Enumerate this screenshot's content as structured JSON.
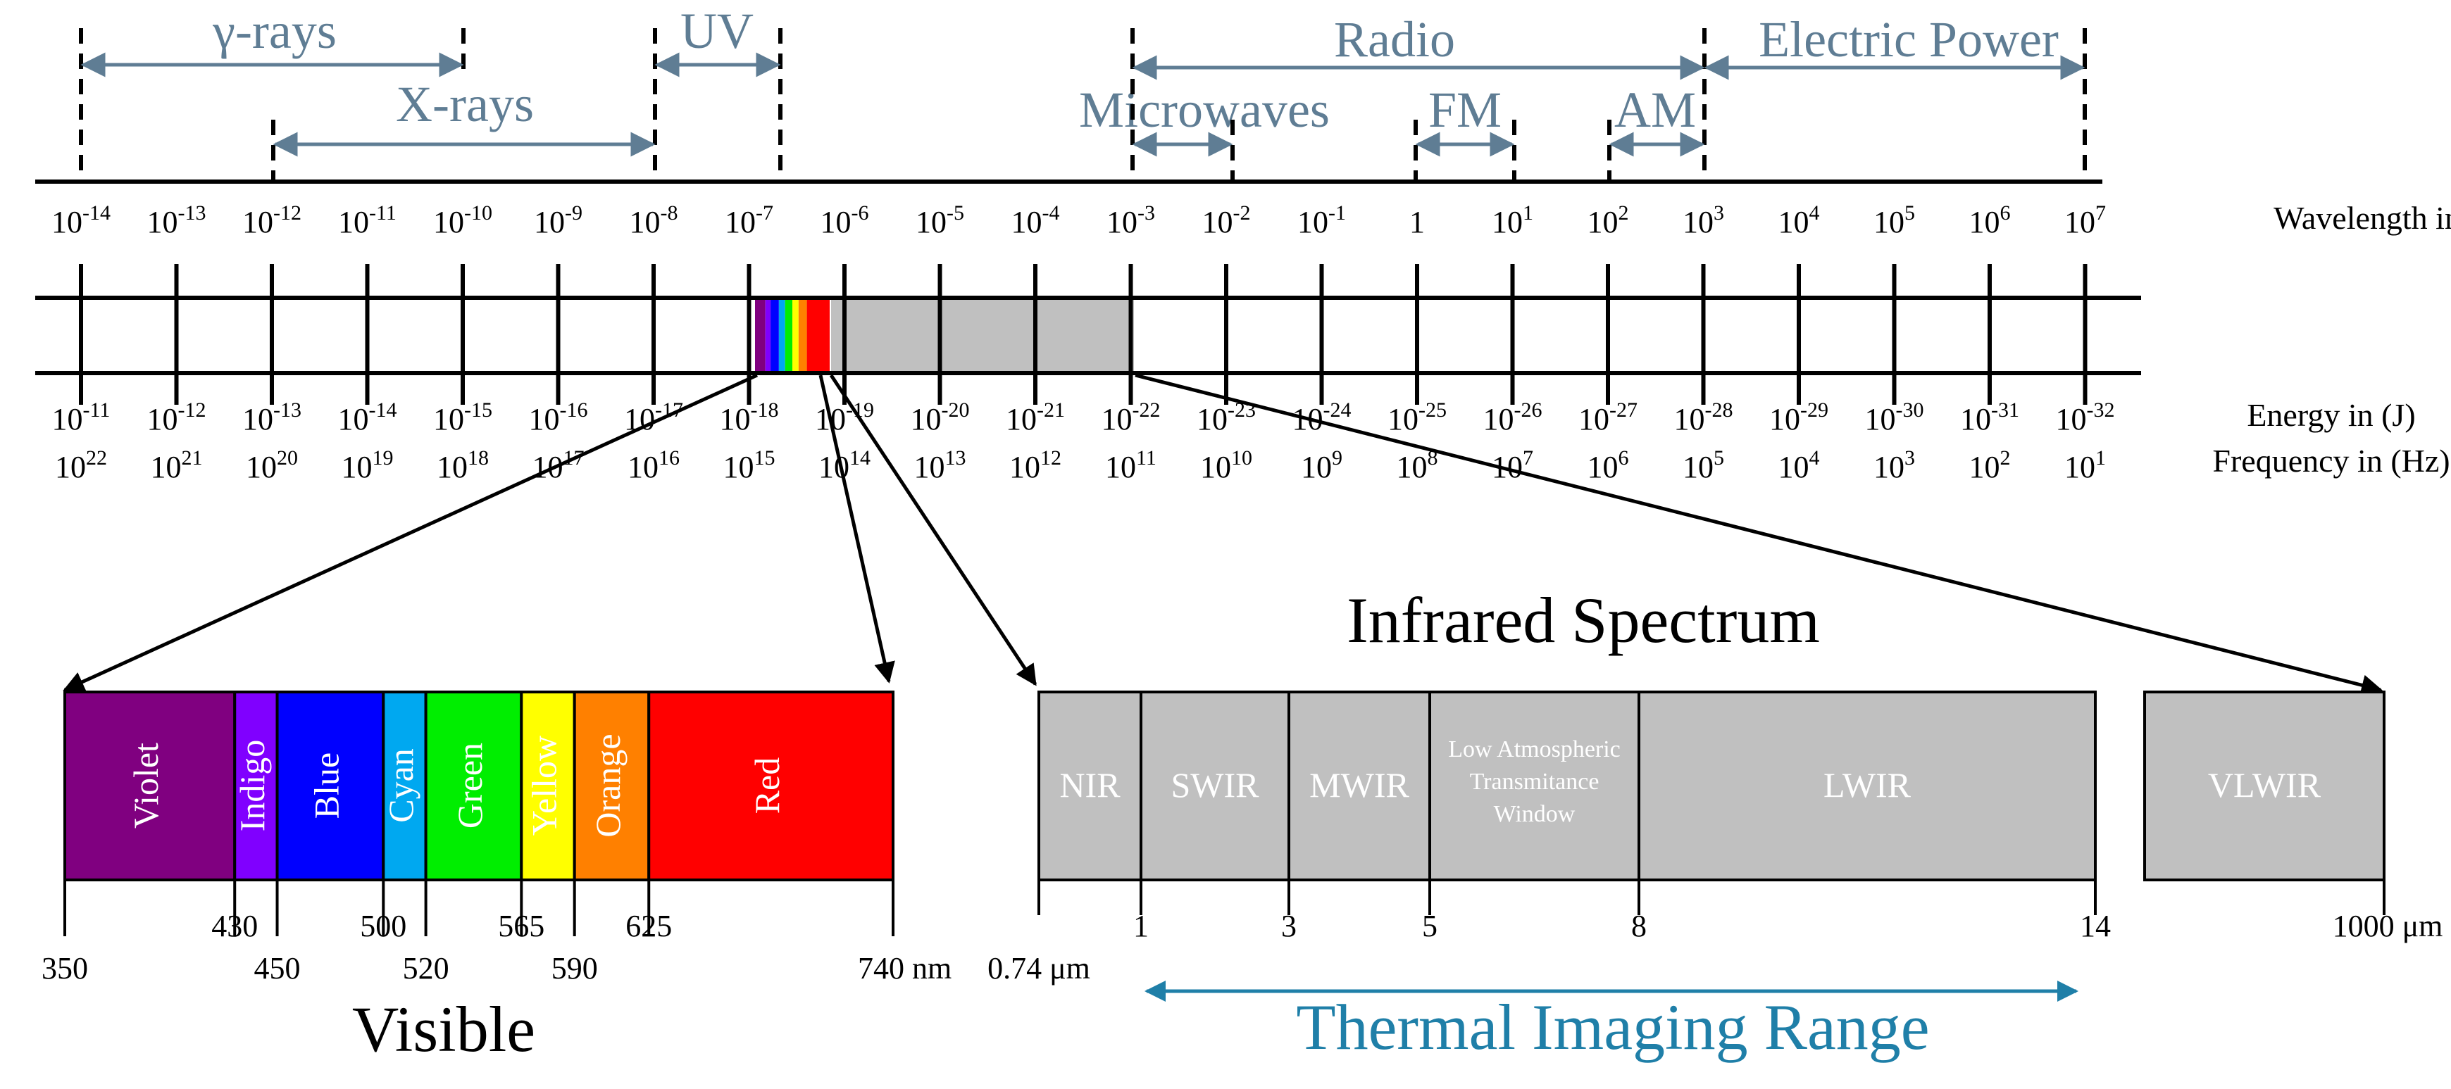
{
  "colors": {
    "band_text": "#5f7d94",
    "band_arrow": "#5f7d94",
    "thermal": "#1f7fa8",
    "ir_fill": "#c0c0c0",
    "visible": [
      "#800080",
      "#8000ff",
      "#0000ff",
      "#00a8f0",
      "#00ee00",
      "#ffff00",
      "#ff8000",
      "#ff0000"
    ]
  },
  "bands": [
    {
      "label": "γ-rays"
    },
    {
      "label": "X-rays"
    },
    {
      "label": "UV"
    },
    {
      "label": "Radio"
    },
    {
      "label": "Electric Power"
    },
    {
      "label": "Microwaves"
    },
    {
      "label": "FM"
    },
    {
      "label": "AM"
    }
  ],
  "wavelength": {
    "title": "Wavelength in (m)",
    "ticks": [
      {
        "base": "10",
        "exp": "-14"
      },
      {
        "base": "10",
        "exp": "-13"
      },
      {
        "base": "10",
        "exp": "-12"
      },
      {
        "base": "10",
        "exp": "-11"
      },
      {
        "base": "10",
        "exp": "-10"
      },
      {
        "base": "10",
        "exp": "-9"
      },
      {
        "base": "10",
        "exp": "-8"
      },
      {
        "base": "10",
        "exp": "-7"
      },
      {
        "base": "10",
        "exp": "-6"
      },
      {
        "base": "10",
        "exp": "-5"
      },
      {
        "base": "10",
        "exp": "-4"
      },
      {
        "base": "10",
        "exp": "-3"
      },
      {
        "base": "10",
        "exp": "-2"
      },
      {
        "base": "10",
        "exp": "-1"
      },
      {
        "base": "1",
        "exp": ""
      },
      {
        "base": "10",
        "exp": "1"
      },
      {
        "base": "10",
        "exp": "2"
      },
      {
        "base": "10",
        "exp": "3"
      },
      {
        "base": "10",
        "exp": "4"
      },
      {
        "base": "10",
        "exp": "5"
      },
      {
        "base": "10",
        "exp": "6"
      },
      {
        "base": "10",
        "exp": "7"
      }
    ]
  },
  "energy": {
    "title": "Energy in (J)",
    "ticks": [
      "-11",
      "-12",
      "-13",
      "-14",
      "-15",
      "-16",
      "-17",
      "-18",
      "-19",
      "-20",
      "-21",
      "-22",
      "-23",
      "-24",
      "-25",
      "-26",
      "-27",
      "-28",
      "-29",
      "-30",
      "-31",
      "-32"
    ]
  },
  "frequency": {
    "title": "Frequency in (Hz)",
    "ticks": [
      "22",
      "21",
      "20",
      "19",
      "18",
      "17",
      "16",
      "15",
      "14",
      "13",
      "12",
      "11",
      "10",
      "9",
      "8",
      "7",
      "6",
      "5",
      "4",
      "3",
      "2",
      "1"
    ]
  },
  "visible": {
    "title": "Visible",
    "colors": [
      {
        "name": "Violet"
      },
      {
        "name": "Indigo"
      },
      {
        "name": "Blue"
      },
      {
        "name": "Cyan"
      },
      {
        "name": "Green"
      },
      {
        "name": "Yellow"
      },
      {
        "name": "Orange"
      },
      {
        "name": "Red"
      }
    ],
    "ticks": [
      {
        "label": "350",
        "row": "low"
      },
      {
        "label": "430",
        "row": "high"
      },
      {
        "label": "450",
        "row": "low"
      },
      {
        "label": "500",
        "row": "high"
      },
      {
        "label": "520",
        "row": "low"
      },
      {
        "label": "565",
        "row": "high"
      },
      {
        "label": "590",
        "row": "low"
      },
      {
        "label": "625",
        "row": "high"
      },
      {
        "label": "740 nm",
        "row": "low"
      }
    ]
  },
  "infrared": {
    "title": "Infrared Spectrum",
    "bands": [
      {
        "label": "NIR"
      },
      {
        "label": "SWIR"
      },
      {
        "label": "MWIR"
      },
      {
        "label": "Low Atmospheric Transmitance Window"
      },
      {
        "label": "LWIR"
      }
    ],
    "vlwir": "VLWIR",
    "ticks": [
      "0.74 μm",
      "1",
      "3",
      "5",
      "8",
      "14",
      "1000 μm"
    ]
  },
  "thermal": {
    "label": "Thermal Imaging Range"
  }
}
